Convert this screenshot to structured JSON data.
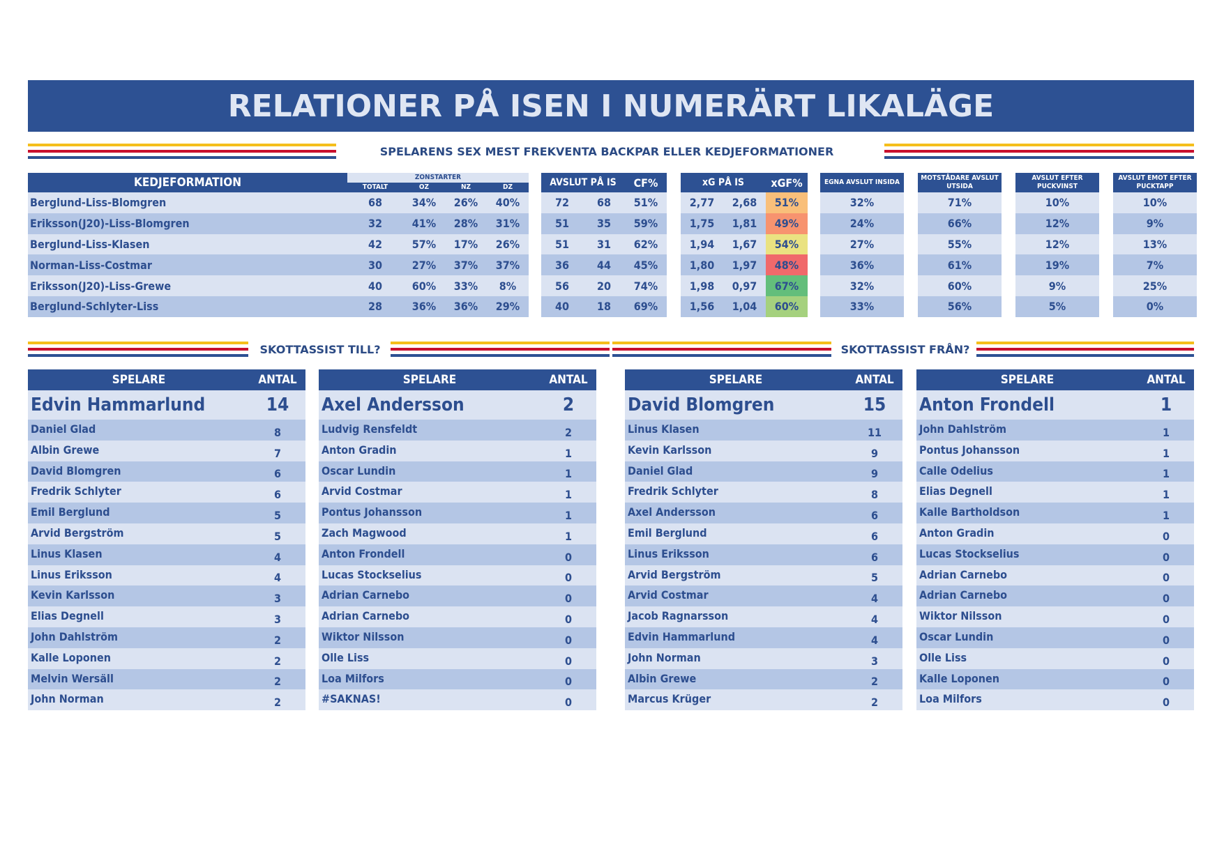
{
  "title": "RELATIONER PÅ ISEN I NUMERÄRT LIKALÄGE",
  "subtitle": "SPELARENS SEX MEST FREKVENTA BACKPAR ELLER KEDJEFORMATIONER",
  "colors": {
    "header_blue": "#2d5193",
    "row_light": "#dbe3f2",
    "row_dark": "#b4c6e5",
    "stripe_yellow": "#f5be1b",
    "stripe_red": "#c8102e"
  },
  "formation_table": {
    "headers": {
      "formation": "KEDJEFORMATION",
      "zonstarter": "ZONSTARTER",
      "totalt": "TOTALT",
      "oz": "OZ",
      "nz": "NZ",
      "dz": "DZ",
      "avslut": "AVSLUT PÅ IS",
      "cf": "CF%",
      "xg": "xG PÅ IS",
      "xgf": "xGF%",
      "egna_inside": "EGNA AVSLUT INSIDA",
      "mot_utsida": "MOTSTÅDARE AVSLUT UTSIDA",
      "efter_puckvinst": "AVSLUT EFTER PUCKVINST",
      "emot_pucktapp": "AVSLUT EMOT EFTER PUCKTAPP"
    },
    "rows": [
      {
        "name": "Berglund-Liss-Blomgren",
        "totalt": "68",
        "oz": "34%",
        "nz": "26%",
        "dz": "40%",
        "af": "72",
        "aa": "68",
        "cf": "51%",
        "xgf_v": "2,77",
        "xga_v": "2,68",
        "xgf": "51%",
        "xgf_color": "#f9bf7a",
        "egna": "32%",
        "mot": "71%",
        "vinst": "10%",
        "tapp": "10%"
      },
      {
        "name": "Eriksson(J20)-Liss-Blomgren",
        "totalt": "32",
        "oz": "41%",
        "nz": "28%",
        "dz": "31%",
        "af": "51",
        "aa": "35",
        "cf": "59%",
        "xgf_v": "1,75",
        "xga_v": "1,81",
        "xgf": "49%",
        "xgf_color": "#f7936f",
        "egna": "24%",
        "mot": "66%",
        "vinst": "12%",
        "tapp": "9%"
      },
      {
        "name": "Berglund-Liss-Klasen",
        "totalt": "42",
        "oz": "57%",
        "nz": "17%",
        "dz": "26%",
        "af": "51",
        "aa": "31",
        "cf": "62%",
        "xgf_v": "1,94",
        "xga_v": "1,67",
        "xgf": "54%",
        "xgf_color": "#eae281",
        "egna": "27%",
        "mot": "55%",
        "vinst": "12%",
        "tapp": "13%"
      },
      {
        "name": "Norman-Liss-Costmar",
        "totalt": "30",
        "oz": "27%",
        "nz": "37%",
        "dz": "37%",
        "af": "36",
        "aa": "44",
        "cf": "45%",
        "xgf_v": "1,80",
        "xga_v": "1,97",
        "xgf": "48%",
        "xgf_color": "#f0696b",
        "egna": "36%",
        "mot": "61%",
        "vinst": "19%",
        "tapp": "7%"
      },
      {
        "name": "Eriksson(J20)-Liss-Grewe",
        "totalt": "40",
        "oz": "60%",
        "nz": "33%",
        "dz": "8%",
        "af": "56",
        "aa": "20",
        "cf": "74%",
        "xgf_v": "1,98",
        "xga_v": "0,97",
        "xgf": "67%",
        "xgf_color": "#63be7b",
        "egna": "32%",
        "mot": "60%",
        "vinst": "9%",
        "tapp": "25%"
      },
      {
        "name": "Berglund-Schlyter-Liss",
        "totalt": "28",
        "oz": "36%",
        "nz": "36%",
        "dz": "29%",
        "af": "40",
        "aa": "18",
        "cf": "69%",
        "xgf_v": "1,56",
        "xga_v": "1,04",
        "xgf": "60%",
        "xgf_color": "#a5d17e",
        "egna": "33%",
        "mot": "56%",
        "vinst": "5%",
        "tapp": "0%"
      }
    ]
  },
  "assist_to": {
    "heading": "SKOTTASSIST TILL?",
    "col_player": "SPELARE",
    "col_count": "ANTAL",
    "left": [
      {
        "name": "Edvin Hammarlund",
        "count": "14"
      },
      {
        "name": "Daniel Glad",
        "count": "8"
      },
      {
        "name": "Albin Grewe",
        "count": "7"
      },
      {
        "name": "David Blomgren",
        "count": "6"
      },
      {
        "name": "Fredrik Schlyter",
        "count": "6"
      },
      {
        "name": "Emil Berglund",
        "count": "5"
      },
      {
        "name": "Arvid Bergström",
        "count": "5"
      },
      {
        "name": "Linus Klasen",
        "count": "4"
      },
      {
        "name": "Linus Eriksson",
        "count": "4"
      },
      {
        "name": "Kevin Karlsson",
        "count": "3"
      },
      {
        "name": "Elias Degnell",
        "count": "3"
      },
      {
        "name": "John Dahlström",
        "count": "2"
      },
      {
        "name": "Kalle Loponen",
        "count": "2"
      },
      {
        "name": "Melvin Wersäll",
        "count": "2"
      },
      {
        "name": "John Norman",
        "count": "2"
      }
    ],
    "right": [
      {
        "name": "Axel Andersson",
        "count": "2"
      },
      {
        "name": "Ludvig Rensfeldt",
        "count": "2"
      },
      {
        "name": "Anton Gradin",
        "count": "1"
      },
      {
        "name": "Oscar Lundin",
        "count": "1"
      },
      {
        "name": "Arvid Costmar",
        "count": "1"
      },
      {
        "name": "Pontus Johansson",
        "count": "1"
      },
      {
        "name": "Zach Magwood",
        "count": "1"
      },
      {
        "name": "Anton Frondell",
        "count": "0"
      },
      {
        "name": "Lucas Stockselius",
        "count": "0"
      },
      {
        "name": "Adrian Carnebo",
        "count": "0"
      },
      {
        "name": "Adrian Carnebo",
        "count": "0"
      },
      {
        "name": "Wiktor Nilsson",
        "count": "0"
      },
      {
        "name": "Olle Liss",
        "count": "0"
      },
      {
        "name": "Loa Milfors",
        "count": "0"
      },
      {
        "name": "#SAKNAS!",
        "count": "0"
      }
    ]
  },
  "assist_from": {
    "heading": "SKOTTASSIST FRÅN?",
    "col_player": "SPELARE",
    "col_count": "ANTAL",
    "left": [
      {
        "name": "David Blomgren",
        "count": "15"
      },
      {
        "name": "Linus Klasen",
        "count": "11"
      },
      {
        "name": "Kevin Karlsson",
        "count": "9"
      },
      {
        "name": "Daniel Glad",
        "count": "9"
      },
      {
        "name": "Fredrik Schlyter",
        "count": "8"
      },
      {
        "name": "Axel Andersson",
        "count": "6"
      },
      {
        "name": "Emil Berglund",
        "count": "6"
      },
      {
        "name": "Linus Eriksson",
        "count": "6"
      },
      {
        "name": "Arvid Bergström",
        "count": "5"
      },
      {
        "name": "Arvid Costmar",
        "count": "4"
      },
      {
        "name": "Jacob Ragnarsson",
        "count": "4"
      },
      {
        "name": "Edvin Hammarlund",
        "count": "4"
      },
      {
        "name": "John Norman",
        "count": "3"
      },
      {
        "name": "Albin Grewe",
        "count": "2"
      },
      {
        "name": "Marcus Krüger",
        "count": "2"
      }
    ],
    "right": [
      {
        "name": "Anton Frondell",
        "count": "1"
      },
      {
        "name": "John Dahlström",
        "count": "1"
      },
      {
        "name": "Pontus Johansson",
        "count": "1"
      },
      {
        "name": "Calle Odelius",
        "count": "1"
      },
      {
        "name": "Elias Degnell",
        "count": "1"
      },
      {
        "name": "Kalle Bartholdson",
        "count": "1"
      },
      {
        "name": "Anton Gradin",
        "count": "0"
      },
      {
        "name": "Lucas Stockselius",
        "count": "0"
      },
      {
        "name": "Adrian Carnebo",
        "count": "0"
      },
      {
        "name": "Adrian Carnebo",
        "count": "0"
      },
      {
        "name": "Wiktor Nilsson",
        "count": "0"
      },
      {
        "name": "Oscar Lundin",
        "count": "0"
      },
      {
        "name": "Olle Liss",
        "count": "0"
      },
      {
        "name": "Kalle Loponen",
        "count": "0"
      },
      {
        "name": "Loa Milfors",
        "count": "0"
      }
    ]
  }
}
